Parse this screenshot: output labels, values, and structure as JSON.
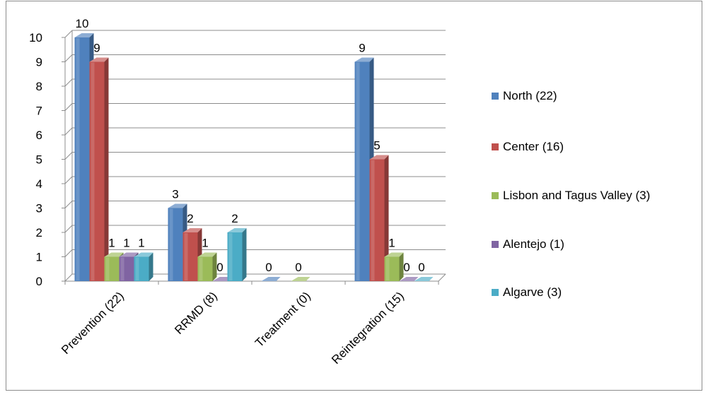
{
  "chart_data": {
    "type": "bar",
    "style": "3d-clustered-column",
    "categories": [
      "Prevention (22)",
      "RRMD (8)",
      "Treatment (0)",
      "Reintegration (15)"
    ],
    "series": [
      {
        "name": "North (22)",
        "color": "#4F81BD",
        "values": [
          10,
          3,
          0,
          9
        ]
      },
      {
        "name": "Center (16)",
        "color": "#C0504D",
        "values": [
          9,
          2,
          null,
          5
        ]
      },
      {
        "name": "Lisbon and Tagus  Valley (3)",
        "color": "#9BBB59",
        "values": [
          1,
          1,
          0,
          1
        ]
      },
      {
        "name": "Alentejo (1)",
        "color": "#8064A2",
        "values": [
          1,
          0,
          null,
          0
        ]
      },
      {
        "name": "Algarve (3)",
        "color": "#4BACC6",
        "values": [
          1,
          2,
          null,
          0
        ]
      }
    ],
    "ylim": [
      0,
      10
    ],
    "yticks": [
      "0",
      "1",
      "2",
      "3",
      "4",
      "5",
      "6",
      "7",
      "8",
      "9",
      "10"
    ],
    "grid": true,
    "legend_position": "right"
  }
}
